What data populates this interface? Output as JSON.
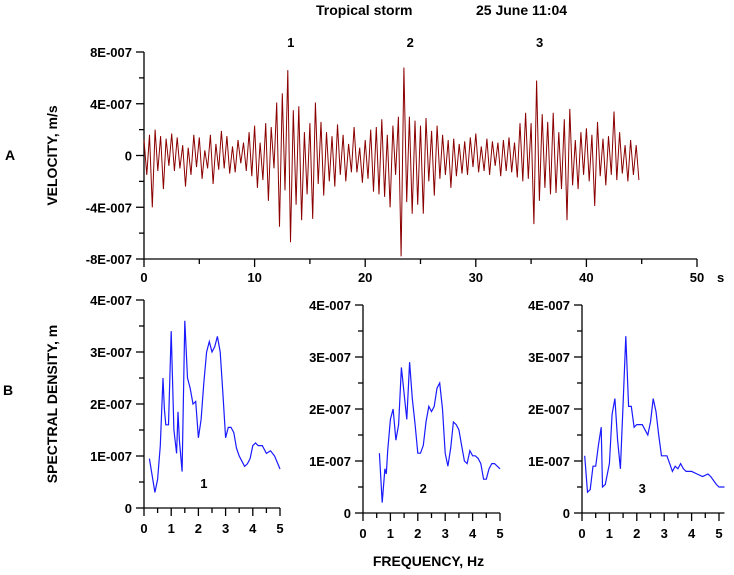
{
  "header": {
    "title": "Tropical storm",
    "date": "25 June 11:04"
  },
  "panel_labels": {
    "a": "A",
    "b": "B"
  },
  "colors": {
    "velocity": "#8b0000",
    "spectra": "#1a1aff"
  },
  "chart_data": [
    {
      "type": "line",
      "title": "Tropical storm 25 June 11:04",
      "ylabel": "VELOCITY, m/s",
      "xunit": "s",
      "xlim": [
        0,
        50
      ],
      "ylim": [
        -8e-07,
        8e-07
      ],
      "xticks": [
        "0",
        "10",
        "20",
        "30",
        "40",
        "50"
      ],
      "yticks": [
        "8E-007",
        "4E-007",
        "0",
        "-4E-007",
        "-8E-007"
      ],
      "event_markers": [
        {
          "label": "1",
          "t": 13
        },
        {
          "label": "2",
          "t": 23.8
        },
        {
          "label": "3",
          "t": 35.5
        }
      ],
      "dt": 0.25,
      "y_scale": 1e-07,
      "values": [
        1.2,
        -1.5,
        1.6,
        -4.0,
        2.0,
        -1.2,
        1.5,
        -2.6,
        1.3,
        -0.8,
        1.7,
        -1.2,
        1.4,
        -1.0,
        0.8,
        -2.4,
        0.6,
        -1.5,
        1.6,
        -0.9,
        1.4,
        -1.8,
        0.4,
        -1.0,
        1.6,
        -2.2,
        0.9,
        -1.1,
        1.9,
        -1.0,
        1.5,
        -1.4,
        0.7,
        -1.3,
        1.2,
        -0.6,
        1.0,
        -1.2,
        1.8,
        -1.6,
        2.3,
        -2.5,
        1.0,
        -1.9,
        2.5,
        -3.5,
        2.2,
        -1.0,
        4.1,
        -5.5,
        4.8,
        -2.7,
        6.6,
        -6.7,
        3.5,
        -3.8,
        3.8,
        -5.0,
        1.8,
        -3.0,
        2.5,
        -4.9,
        4.1,
        -2.2,
        2.6,
        -3.1,
        1.8,
        -2.0,
        1.5,
        -2.4,
        2.4,
        -1.5,
        1.6,
        -2.0,
        0.9,
        -1.3,
        2.2,
        -1.3,
        0.6,
        -2.1,
        1.2,
        -1.8,
        2.0,
        -2.8,
        2.2,
        -3.0,
        2.8,
        -3.2,
        1.6,
        -4.0,
        2.3,
        -1.5,
        3.0,
        -7.8,
        6.8,
        -3.6,
        3.0,
        -4.5,
        2.7,
        -3.8,
        2.3,
        -4.5,
        2.9,
        -2.0,
        1.9,
        -3.1,
        2.3,
        -1.8,
        1.6,
        -1.5,
        1.2,
        -2.5,
        1.3,
        -1.6,
        0.9,
        -1.4,
        1.1,
        -1.5,
        1.4,
        -0.9,
        1.7,
        -1.3,
        0.7,
        -1.2,
        1.3,
        -1.5,
        1.1,
        -0.8,
        1.0,
        -1.6,
        1.2,
        -1.2,
        1.4,
        -1.3,
        1.0,
        -1.7,
        2.5,
        -2.0,
        3.3,
        -1.8,
        2.5,
        -5.3,
        5.8,
        -3.5,
        3.2,
        -2.5,
        2.6,
        -3.0,
        3.3,
        -2.9,
        1.8,
        -2.6,
        2.8,
        -5.0,
        3.6,
        -2.3,
        1.2,
        -2.6,
        1.8,
        -1.5,
        2.1,
        -2.0,
        1.6,
        -3.9,
        2.6,
        -1.6,
        1.3,
        -2.3,
        1.5,
        -1.5,
        3.4,
        -1.9,
        1.8,
        -1.4,
        0.8,
        -2.0,
        1.2,
        -1.5,
        0.8,
        -1.9
      ]
    },
    {
      "type": "line",
      "label": "1",
      "xlim": [
        0,
        5
      ],
      "ylim": [
        0,
        4e-07
      ],
      "y_scale": 1e-07,
      "ylabel": "SPECTRAL DENSITY, m",
      "xticks": [
        "0",
        "1",
        "2",
        "3",
        "4",
        "5"
      ],
      "yticks": [
        "0",
        "1E-007",
        "2E-007",
        "3E-007",
        "4E-007"
      ],
      "x": [
        0.2,
        0.4,
        0.5,
        0.6,
        0.7,
        0.75,
        0.8,
        0.9,
        1.0,
        1.1,
        1.2,
        1.25,
        1.3,
        1.4,
        1.5,
        1.6,
        1.7,
        1.8,
        1.9,
        2.0,
        2.1,
        2.2,
        2.3,
        2.4,
        2.5,
        2.6,
        2.7,
        2.8,
        2.9,
        3.0,
        3.1,
        3.2,
        3.3,
        3.4,
        3.5,
        3.6,
        3.7,
        3.8,
        3.9,
        4.0,
        4.1,
        4.2,
        4.35,
        4.5,
        4.65,
        4.8,
        5.0
      ],
      "y": [
        0.95,
        0.3,
        0.55,
        1.2,
        2.5,
        1.9,
        1.6,
        1.6,
        3.4,
        1.5,
        1.05,
        1.85,
        1.3,
        0.7,
        3.6,
        2.5,
        2.3,
        2.0,
        2.05,
        1.35,
        1.7,
        2.4,
        3.0,
        3.2,
        3.0,
        3.1,
        3.3,
        3.0,
        2.2,
        1.35,
        1.55,
        1.55,
        1.45,
        1.15,
        1.0,
        0.9,
        0.8,
        0.85,
        0.95,
        1.2,
        1.25,
        1.2,
        1.2,
        1.05,
        1.1,
        1.0,
        0.75
      ]
    },
    {
      "type": "line",
      "label": "2",
      "xlim": [
        0,
        5
      ],
      "ylim": [
        0,
        4e-07
      ],
      "y_scale": 1e-07,
      "xlabel": "FREQUENCY, Hz",
      "xticks": [
        "0",
        "1",
        "2",
        "3",
        "4",
        "5"
      ],
      "yticks": [
        "0",
        "1E-007",
        "2E-007",
        "3E-007",
        "4E-007"
      ],
      "x": [
        0.6,
        0.7,
        0.8,
        0.85,
        0.9,
        1.0,
        1.1,
        1.2,
        1.3,
        1.4,
        1.5,
        1.6,
        1.7,
        1.8,
        1.9,
        2.0,
        2.1,
        2.2,
        2.3,
        2.4,
        2.5,
        2.6,
        2.7,
        2.8,
        2.9,
        3.0,
        3.1,
        3.2,
        3.3,
        3.4,
        3.5,
        3.6,
        3.7,
        3.8,
        3.9,
        4.0,
        4.1,
        4.2,
        4.3,
        4.4,
        4.5,
        4.6,
        4.7,
        4.8,
        5.0
      ],
      "y": [
        1.15,
        0.2,
        0.85,
        0.75,
        1.2,
        1.8,
        2.0,
        1.4,
        1.7,
        2.8,
        2.3,
        1.8,
        2.9,
        2.2,
        1.7,
        1.15,
        1.15,
        1.3,
        1.75,
        2.05,
        1.95,
        2.05,
        2.4,
        2.5,
        2.0,
        1.15,
        0.9,
        1.25,
        1.75,
        1.7,
        1.6,
        1.3,
        1.0,
        0.95,
        1.2,
        1.1,
        1.1,
        1.05,
        0.95,
        0.65,
        0.65,
        0.85,
        0.95,
        0.95,
        0.85
      ]
    },
    {
      "type": "line",
      "label": "3",
      "xlim": [
        0,
        5.2
      ],
      "ylim": [
        0,
        4e-07
      ],
      "y_scale": 1e-07,
      "xticks": [
        "0",
        "1",
        "2",
        "3",
        "4",
        "5"
      ],
      "yticks": [
        "0",
        "1E-007",
        "2E-007",
        "3E-007",
        "4E-007"
      ],
      "x": [
        0.1,
        0.2,
        0.3,
        0.4,
        0.5,
        0.6,
        0.7,
        0.75,
        0.85,
        1.0,
        1.1,
        1.2,
        1.3,
        1.4,
        1.5,
        1.6,
        1.7,
        1.8,
        1.9,
        2.0,
        2.2,
        2.3,
        2.4,
        2.5,
        2.6,
        2.7,
        2.8,
        2.9,
        3.0,
        3.1,
        3.2,
        3.3,
        3.4,
        3.5,
        3.6,
        3.7,
        3.8,
        4.0,
        4.2,
        4.4,
        4.6,
        4.7,
        4.9,
        5.0,
        5.2
      ],
      "y": [
        1.1,
        0.4,
        0.45,
        0.9,
        0.9,
        1.3,
        1.65,
        0.5,
        0.55,
        0.95,
        1.9,
        2.2,
        1.4,
        0.85,
        2.1,
        3.4,
        2.05,
        2.05,
        1.65,
        1.7,
        1.7,
        1.6,
        1.5,
        1.75,
        2.2,
        1.95,
        1.5,
        1.1,
        1.1,
        1.1,
        0.95,
        0.8,
        0.9,
        0.85,
        0.95,
        0.85,
        0.8,
        0.8,
        0.75,
        0.7,
        0.75,
        0.7,
        0.55,
        0.5,
        0.5
      ]
    }
  ]
}
